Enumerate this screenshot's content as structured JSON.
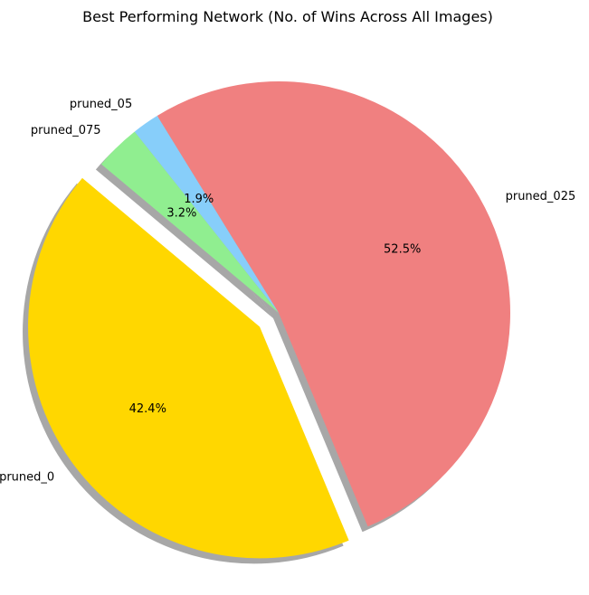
{
  "chart_data": {
    "type": "pie",
    "title": "Best Performing Network (No. of Wins Across All Images)",
    "slices": [
      {
        "label": "pruned_0",
        "value": 42.4,
        "pct_text": "42.4%",
        "color": "#FFD700",
        "exploded": true
      },
      {
        "label": "pruned_025",
        "value": 52.5,
        "pct_text": "52.5%",
        "color": "#F08080",
        "exploded": false
      },
      {
        "label": "pruned_05",
        "value": 1.9,
        "pct_text": "1.9%",
        "color": "#87CEFA",
        "exploded": false
      },
      {
        "label": "pruned_075",
        "value": 3.2,
        "pct_text": "3.2%",
        "color": "#90EE90",
        "exploded": false
      }
    ],
    "start_angle_deg": 140,
    "direction": "counterclockwise",
    "shadow": true,
    "legend": "none"
  }
}
